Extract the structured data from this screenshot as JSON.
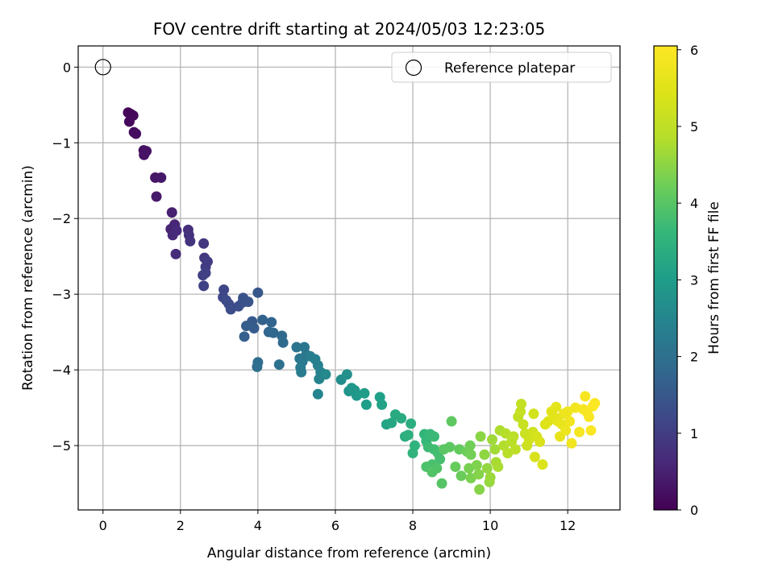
{
  "chart_data": {
    "type": "scatter",
    "title": "FOV centre drift starting at 2024/05/03 12:23:05",
    "xlabel": "Angular distance from reference (arcmin)",
    "ylabel": "Rotation from reference (arcmin)",
    "xlim": [
      -0.64,
      13.35
    ],
    "ylim": [
      -5.85,
      0.28
    ],
    "xticks": [
      0,
      2,
      4,
      6,
      8,
      10,
      12
    ],
    "yticks": [
      0,
      -1,
      -2,
      -3,
      -4,
      -5
    ],
    "grid": true,
    "colormap": "viridis",
    "colorbar": {
      "label": "Hours from first FF file",
      "range": [
        0,
        6.05
      ],
      "ticks": [
        0,
        1,
        2,
        3,
        4,
        5,
        6
      ]
    },
    "legend": {
      "placement": "top-right",
      "entries": [
        "Reference platepar"
      ]
    },
    "reference_point": {
      "x": 0,
      "y": 0,
      "label": "Reference platepar"
    },
    "series": [
      {
        "values": [
          [
            0.65,
            -0.6,
            0.05
          ],
          [
            0.72,
            -0.62,
            0.08
          ],
          [
            0.78,
            -0.64,
            0.1
          ],
          [
            0.68,
            -0.72,
            0.12
          ],
          [
            0.8,
            -0.86,
            0.15
          ],
          [
            0.85,
            -0.88,
            0.18
          ],
          [
            1.05,
            -1.1,
            0.22
          ],
          [
            1.12,
            -1.11,
            0.25
          ],
          [
            1.06,
            -1.16,
            0.28
          ],
          [
            1.35,
            -1.46,
            0.32
          ],
          [
            1.5,
            -1.46,
            0.35
          ],
          [
            1.38,
            -1.71,
            0.38
          ],
          [
            1.78,
            -1.92,
            0.5
          ],
          [
            1.75,
            -2.14,
            0.55
          ],
          [
            1.85,
            -2.08,
            0.58
          ],
          [
            1.8,
            -2.22,
            0.62
          ],
          [
            1.9,
            -2.16,
            0.65
          ],
          [
            1.88,
            -2.47,
            0.68
          ],
          [
            2.2,
            -2.15,
            0.75
          ],
          [
            2.22,
            -2.22,
            0.78
          ],
          [
            2.25,
            -2.3,
            0.82
          ],
          [
            2.6,
            -2.33,
            0.88
          ],
          [
            2.62,
            -2.52,
            0.92
          ],
          [
            2.7,
            -2.57,
            0.95
          ],
          [
            2.65,
            -2.64,
            0.98
          ],
          [
            2.58,
            -2.75,
            1.02
          ],
          [
            2.65,
            -2.72,
            1.05
          ],
          [
            2.6,
            -2.89,
            1.08
          ],
          [
            3.12,
            -2.94,
            1.15
          ],
          [
            3.1,
            -3.04,
            1.18
          ],
          [
            3.18,
            -3.08,
            1.22
          ],
          [
            3.25,
            -3.13,
            1.25
          ],
          [
            3.3,
            -3.2,
            1.28
          ],
          [
            3.5,
            -3.16,
            1.32
          ],
          [
            3.6,
            -3.11,
            1.35
          ],
          [
            3.62,
            -3.05,
            1.38
          ],
          [
            3.75,
            -3.1,
            1.42
          ],
          [
            4.0,
            -2.98,
            1.48
          ],
          [
            3.85,
            -3.36,
            1.55
          ],
          [
            3.9,
            -3.45,
            1.58
          ],
          [
            3.7,
            -3.42,
            1.62
          ],
          [
            3.65,
            -3.56,
            1.65
          ],
          [
            4.12,
            -3.34,
            1.72
          ],
          [
            4.35,
            -3.37,
            1.75
          ],
          [
            4.28,
            -3.5,
            1.78
          ],
          [
            4.4,
            -3.51,
            1.82
          ],
          [
            4.62,
            -3.55,
            1.85
          ],
          [
            4.65,
            -3.64,
            1.88
          ],
          [
            4.0,
            -3.9,
            1.92
          ],
          [
            3.98,
            -3.96,
            1.95
          ],
          [
            4.55,
            -3.93,
            2.02
          ],
          [
            5.0,
            -3.7,
            2.08
          ],
          [
            5.2,
            -3.7,
            2.12
          ],
          [
            5.25,
            -3.8,
            2.15
          ],
          [
            5.08,
            -3.85,
            2.18
          ],
          [
            5.15,
            -3.89,
            2.22
          ],
          [
            5.1,
            -3.97,
            2.25
          ],
          [
            5.12,
            -4.03,
            2.28
          ],
          [
            5.35,
            -3.82,
            2.32
          ],
          [
            5.48,
            -3.86,
            2.35
          ],
          [
            5.55,
            -3.94,
            2.38
          ],
          [
            5.62,
            -4.03,
            2.42
          ],
          [
            5.58,
            -4.12,
            2.45
          ],
          [
            5.55,
            -4.32,
            2.48
          ],
          [
            5.75,
            -4.06,
            2.55
          ],
          [
            6.15,
            -4.13,
            2.65
          ],
          [
            6.3,
            -4.06,
            2.72
          ],
          [
            6.35,
            -4.28,
            2.8
          ],
          [
            6.42,
            -4.24,
            2.85
          ],
          [
            6.5,
            -4.27,
            2.88
          ],
          [
            6.55,
            -4.34,
            2.92
          ],
          [
            6.75,
            -4.31,
            2.98
          ],
          [
            6.8,
            -4.46,
            3.02
          ],
          [
            7.15,
            -4.36,
            3.08
          ],
          [
            7.2,
            -4.46,
            3.12
          ],
          [
            7.32,
            -4.72,
            3.18
          ],
          [
            7.45,
            -4.7,
            3.22
          ],
          [
            7.55,
            -4.59,
            3.28
          ],
          [
            7.7,
            -4.64,
            3.32
          ],
          [
            7.95,
            -4.71,
            3.38
          ],
          [
            7.8,
            -4.88,
            3.42
          ],
          [
            7.88,
            -4.86,
            3.45
          ],
          [
            8.05,
            -5.0,
            3.5
          ],
          [
            8.0,
            -5.1,
            3.52
          ],
          [
            8.3,
            -4.85,
            3.58
          ],
          [
            8.35,
            -4.94,
            3.62
          ],
          [
            8.45,
            -4.85,
            3.65
          ],
          [
            8.55,
            -4.88,
            3.68
          ],
          [
            8.4,
            -5.02,
            3.72
          ],
          [
            8.55,
            -5.05,
            3.75
          ],
          [
            8.65,
            -5.1,
            3.78
          ],
          [
            8.7,
            -5.18,
            3.82
          ],
          [
            8.5,
            -5.25,
            3.85
          ],
          [
            8.35,
            -5.28,
            3.88
          ],
          [
            8.62,
            -5.3,
            3.92
          ],
          [
            8.5,
            -5.35,
            3.95
          ],
          [
            8.75,
            -5.5,
            3.98
          ],
          [
            8.8,
            -5.05,
            4.02
          ],
          [
            8.95,
            -5.02,
            4.05
          ],
          [
            9.0,
            -4.68,
            4.08
          ],
          [
            9.2,
            -5.05,
            4.12
          ],
          [
            9.1,
            -5.28,
            4.15
          ],
          [
            9.25,
            -5.4,
            4.18
          ],
          [
            9.4,
            -5.08,
            4.22
          ],
          [
            9.48,
            -5.0,
            4.25
          ],
          [
            9.5,
            -5.12,
            4.28
          ],
          [
            9.45,
            -5.3,
            4.32
          ],
          [
            9.5,
            -5.43,
            4.35
          ],
          [
            9.65,
            -5.26,
            4.38
          ],
          [
            9.7,
            -5.38,
            4.42
          ],
          [
            9.72,
            -5.58,
            4.45
          ],
          [
            9.75,
            -4.88,
            4.48
          ],
          [
            9.85,
            -5.12,
            4.52
          ],
          [
            9.92,
            -5.3,
            4.55
          ],
          [
            9.98,
            -5.48,
            4.58
          ],
          [
            10.0,
            -5.42,
            4.62
          ],
          [
            10.05,
            -4.92,
            4.65
          ],
          [
            10.12,
            -5.05,
            4.68
          ],
          [
            10.15,
            -5.22,
            4.72
          ],
          [
            10.2,
            -5.28,
            4.75
          ],
          [
            10.25,
            -4.8,
            4.78
          ],
          [
            10.35,
            -5.0,
            4.82
          ],
          [
            10.4,
            -4.84,
            4.85
          ],
          [
            10.45,
            -5.1,
            4.88
          ],
          [
            10.55,
            -4.95,
            4.92
          ],
          [
            10.6,
            -4.88,
            4.95
          ],
          [
            10.65,
            -5.05,
            4.98
          ],
          [
            10.72,
            -4.62,
            5.02
          ],
          [
            10.8,
            -4.45,
            5.05
          ],
          [
            10.78,
            -4.55,
            5.08
          ],
          [
            10.85,
            -4.72,
            5.12
          ],
          [
            10.9,
            -4.84,
            5.15
          ],
          [
            10.95,
            -5.0,
            5.18
          ],
          [
            11.0,
            -4.92,
            5.22
          ],
          [
            11.1,
            -4.82,
            5.25
          ],
          [
            11.12,
            -4.58,
            5.28
          ],
          [
            11.2,
            -4.88,
            5.32
          ],
          [
            11.15,
            -5.15,
            5.35
          ],
          [
            11.28,
            -4.95,
            5.38
          ],
          [
            11.35,
            -5.25,
            5.42
          ],
          [
            11.42,
            -4.72,
            5.45
          ],
          [
            11.5,
            -4.68,
            5.48
          ],
          [
            11.58,
            -4.55,
            5.52
          ],
          [
            11.65,
            -4.62,
            5.55
          ],
          [
            11.7,
            -4.49,
            5.58
          ],
          [
            11.75,
            -4.68,
            5.62
          ],
          [
            11.8,
            -4.88,
            5.65
          ],
          [
            11.85,
            -4.72,
            5.68
          ],
          [
            11.9,
            -4.58,
            5.72
          ],
          [
            11.95,
            -4.8,
            5.75
          ],
          [
            12.0,
            -4.55,
            5.78
          ],
          [
            12.05,
            -4.68,
            5.8
          ],
          [
            12.1,
            -4.97,
            5.82
          ],
          [
            12.2,
            -4.5,
            5.85
          ],
          [
            12.3,
            -4.82,
            5.88
          ],
          [
            12.4,
            -4.52,
            5.9
          ],
          [
            12.45,
            -4.35,
            5.92
          ],
          [
            12.5,
            -4.56,
            5.95
          ],
          [
            12.55,
            -4.62,
            5.97
          ],
          [
            12.6,
            -4.8,
            5.99
          ],
          [
            12.65,
            -4.48,
            6.01
          ],
          [
            12.7,
            -4.44,
            6.03
          ]
        ]
      }
    ]
  }
}
